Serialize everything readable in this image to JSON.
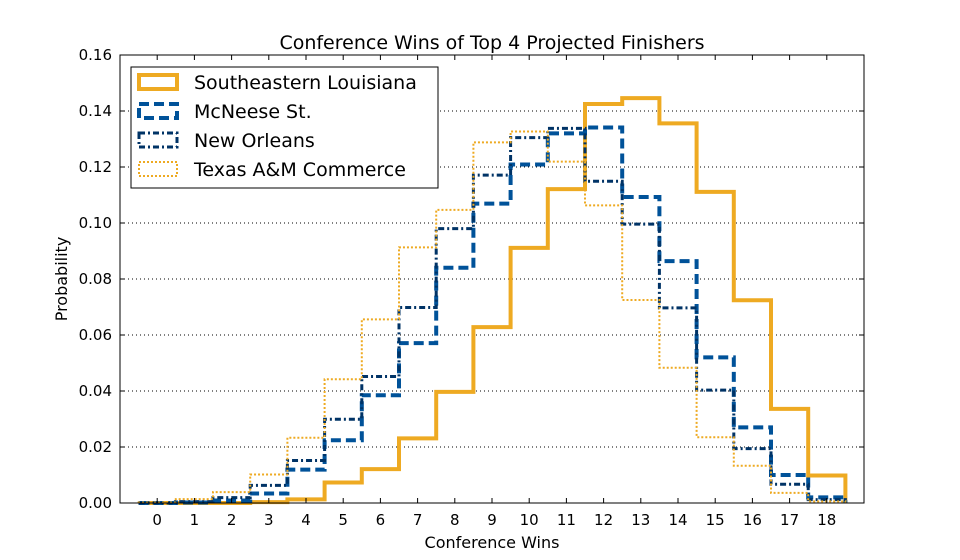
{
  "chart_data": {
    "type": "line",
    "title": "Conference Wins of Top 4 Projected Finishers",
    "xlabel": "Conference Wins",
    "ylabel": "Probability",
    "xlim": [
      -1,
      19
    ],
    "ylim": [
      0,
      0.16
    ],
    "x_ticks": [
      0,
      1,
      2,
      3,
      4,
      5,
      6,
      7,
      8,
      9,
      10,
      11,
      12,
      13,
      14,
      15,
      16,
      17,
      18
    ],
    "y_ticks": [
      0.0,
      0.02,
      0.04,
      0.06,
      0.08,
      0.1,
      0.12,
      0.14,
      0.16
    ],
    "y_tick_labels": [
      "0.00",
      "0.02",
      "0.04",
      "0.06",
      "0.08",
      "0.10",
      "0.12",
      "0.14",
      "0.16"
    ],
    "grid": "horizontal dotted",
    "legend_placement": "top-left",
    "x": [
      0,
      1,
      2,
      3,
      4,
      5,
      6,
      7,
      8,
      9,
      10,
      11,
      12,
      13,
      14,
      15,
      16,
      17,
      18
    ],
    "series": [
      {
        "name": "Southeastern Louisiana",
        "color": "#eeaa22",
        "style": "solid",
        "values": [
          0.0,
          0.0,
          0.0,
          0.0003,
          0.0013,
          0.0073,
          0.0121,
          0.0231,
          0.0397,
          0.0628,
          0.0911,
          0.1121,
          0.1425,
          0.1446,
          0.1356,
          0.1111,
          0.0724,
          0.0336,
          0.0098
        ]
      },
      {
        "name": "McNeese St.",
        "color": "#005299",
        "style": "dashed",
        "values": [
          0.0,
          0.0002,
          0.0009,
          0.0034,
          0.0119,
          0.0224,
          0.0385,
          0.0571,
          0.084,
          0.1069,
          0.1209,
          0.132,
          0.1341,
          0.1093,
          0.0864,
          0.052,
          0.027,
          0.01,
          0.002
        ]
      },
      {
        "name": "New Orleans",
        "color": "#003366",
        "style": "dashdot",
        "values": [
          0.0,
          0.0005,
          0.0019,
          0.0063,
          0.0152,
          0.0299,
          0.0452,
          0.0698,
          0.098,
          0.1171,
          0.1305,
          0.1338,
          0.1149,
          0.0996,
          0.0697,
          0.0403,
          0.0194,
          0.0067,
          0.0012
        ]
      },
      {
        "name": "Texas A&M Commerce",
        "color": "#eeaa22",
        "style": "dotted",
        "values": [
          0.0002,
          0.0014,
          0.0039,
          0.0102,
          0.0233,
          0.0442,
          0.0656,
          0.0913,
          0.1047,
          0.1288,
          0.1327,
          0.1219,
          0.1063,
          0.0725,
          0.0483,
          0.0235,
          0.0133,
          0.0036,
          0.0006
        ]
      }
    ]
  }
}
